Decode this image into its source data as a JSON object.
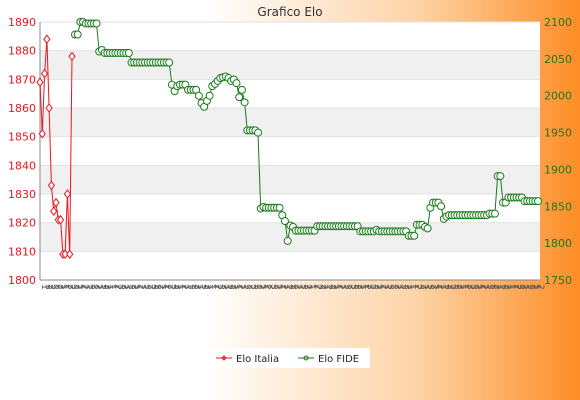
{
  "chart_data": {
    "type": "line",
    "title": "Grafico Elo",
    "xlabel": "",
    "ylabel_left": "",
    "ylabel_right": "",
    "ylim_left": [
      1800,
      1890
    ],
    "yticks_left": [
      1800,
      1810,
      1820,
      1830,
      1840,
      1850,
      1860,
      1870,
      1880,
      1890
    ],
    "ylim_right": [
      1750,
      2100
    ],
    "yticks_right": [
      1750,
      1800,
      1850,
      1900,
      1950,
      2000,
      2050,
      2100
    ],
    "grid": "horizontal bands",
    "legend_position": "bottom-center",
    "x_tick_pattern": [
      "1",
      "3",
      "2",
      "3",
      "2",
      "2",
      "1",
      "2",
      "2",
      "3",
      "2",
      "1",
      "2",
      "1",
      "3",
      "2",
      "2",
      "1",
      "3",
      "2",
      "1",
      "1",
      "2",
      "3",
      "2",
      "1",
      "3",
      "2",
      "1",
      "2"
    ],
    "x_tick_label_count": 150,
    "series": [
      {
        "name": "Elo Italia",
        "axis": "left",
        "color": "#e8161e",
        "values": [
          1869,
          1851,
          1872,
          1884,
          1860,
          1833,
          1824,
          1827,
          1821,
          1821,
          1809,
          1809,
          1830,
          1809,
          1878
        ]
      },
      {
        "name": "Elo FIDE",
        "axis": "right",
        "color": "#1a7a1a",
        "values": [
          2083,
          2083,
          2100,
          2100,
          2098,
          2098,
          2098,
          2098,
          2098,
          2060,
          2062,
          2058,
          2058,
          2058,
          2058,
          2058,
          2058,
          2058,
          2058,
          2058,
          2058,
          2045,
          2045,
          2045,
          2045,
          2045,
          2045,
          2045,
          2045,
          2045,
          2045,
          2045,
          2045,
          2045,
          2045,
          2045,
          2015,
          2006,
          2013,
          2015,
          2015,
          2015,
          2008,
          2008,
          2008,
          2008,
          2000,
          1990,
          1985,
          1993,
          2000,
          2013,
          2016,
          2020,
          2024,
          2025,
          2026,
          2024,
          2020,
          2022,
          2017,
          1998,
          2008,
          1991,
          1953,
          1953,
          1953,
          1953,
          1950,
          1847,
          1849,
          1848,
          1848,
          1848,
          1848,
          1848,
          1848,
          1838,
          1830,
          1803,
          1824,
          1822,
          1817,
          1817,
          1817,
          1817,
          1817,
          1817,
          1817,
          1817,
          1823,
          1823,
          1823,
          1823,
          1823,
          1823,
          1823,
          1823,
          1823,
          1823,
          1823,
          1823,
          1823,
          1823,
          1823,
          1823,
          1816,
          1816,
          1816,
          1816,
          1816,
          1816,
          1818,
          1816,
          1816,
          1816,
          1816,
          1816,
          1816,
          1816,
          1816,
          1816,
          1816,
          1816,
          1810,
          1810,
          1810,
          1825,
          1825,
          1825,
          1822,
          1820,
          1848,
          1855,
          1855,
          1855,
          1850,
          1833,
          1836,
          1838,
          1838,
          1838,
          1838,
          1838,
          1838,
          1838,
          1838,
          1838,
          1838,
          1838,
          1838,
          1838,
          1838,
          1838,
          1840,
          1840,
          1840,
          1891,
          1891,
          1855,
          1855,
          1862,
          1862,
          1862,
          1862,
          1862,
          1862,
          1857,
          1857,
          1857,
          1857,
          1857,
          1857
        ]
      }
    ]
  }
}
